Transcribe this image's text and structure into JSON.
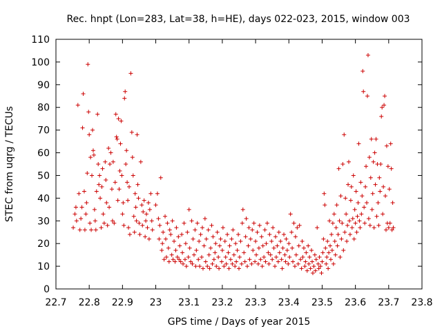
{
  "chart_data": {
    "type": "scatter",
    "title": "Rec. hnpt (Lon=283, Lat=38, h=HE), days 022-023, 2015, window 003",
    "xlabel": "GPS time / Days of year 2015",
    "ylabel": "STEC from uqrg / TECUs",
    "xlim": [
      22.7,
      23.8
    ],
    "ylim": [
      0,
      110
    ],
    "xticks": [
      "22.7",
      "22.8",
      "22.9",
      "23",
      "23.1",
      "23.2",
      "23.3",
      "23.4",
      "23.5",
      "23.6",
      "23.7",
      "23.8"
    ],
    "yticks": [
      "0",
      "10",
      "20",
      "30",
      "40",
      "50",
      "60",
      "70",
      "80",
      "90",
      "100",
      "110"
    ],
    "grid": false,
    "marker": "plus",
    "color": "#cc0000",
    "series_rows": [
      [
        22.752,
        27
      ],
      [
        22.757,
        33
      ],
      [
        22.76,
        36
      ],
      [
        22.762,
        30
      ],
      [
        22.766,
        81
      ],
      [
        22.769,
        42
      ],
      [
        22.772,
        26
      ],
      [
        22.775,
        31
      ],
      [
        22.778,
        36
      ],
      [
        22.78,
        71
      ],
      [
        22.782,
        86
      ],
      [
        22.785,
        43
      ],
      [
        22.787,
        26
      ],
      [
        22.79,
        33
      ],
      [
        22.792,
        38
      ],
      [
        22.794,
        51
      ],
      [
        22.796,
        99
      ],
      [
        22.798,
        78
      ],
      [
        22.8,
        68
      ],
      [
        22.802,
        29
      ],
      [
        22.804,
        58
      ],
      [
        22.806,
        26
      ],
      [
        22.808,
        50
      ],
      [
        22.81,
        70
      ],
      [
        22.812,
        61
      ],
      [
        22.814,
        59
      ],
      [
        22.816,
        35
      ],
      [
        22.818,
        30
      ],
      [
        22.82,
        26
      ],
      [
        22.822,
        43
      ],
      [
        22.825,
        77
      ],
      [
        22.827,
        55
      ],
      [
        22.829,
        46
      ],
      [
        22.831,
        50
      ],
      [
        22.833,
        40
      ],
      [
        22.836,
        27
      ],
      [
        22.838,
        45
      ],
      [
        22.84,
        53
      ],
      [
        22.842,
        33
      ],
      [
        22.845,
        29
      ],
      [
        22.848,
        56
      ],
      [
        22.85,
        48
      ],
      [
        22.852,
        38
      ],
      [
        22.855,
        28
      ],
      [
        22.858,
        62
      ],
      [
        22.86,
        36
      ],
      [
        22.862,
        55
      ],
      [
        22.865,
        60
      ],
      [
        22.868,
        44
      ],
      [
        22.87,
        30
      ],
      [
        22.872,
        56
      ],
      [
        22.875,
        29
      ],
      [
        22.878,
        47
      ],
      [
        22.88,
        77
      ],
      [
        22.882,
        67
      ],
      [
        22.884,
        66
      ],
      [
        22.886,
        39
      ],
      [
        22.888,
        75
      ],
      [
        22.89,
        44
      ],
      [
        22.892,
        52
      ],
      [
        22.894,
        64
      ],
      [
        22.896,
        74
      ],
      [
        22.898,
        50
      ],
      [
        22.9,
        33
      ],
      [
        22.902,
        38
      ],
      [
        22.904,
        28
      ],
      [
        22.906,
        84
      ],
      [
        22.908,
        87
      ],
      [
        22.91,
        55
      ],
      [
        22.912,
        61
      ],
      [
        22.914,
        47
      ],
      [
        22.916,
        39
      ],
      [
        22.918,
        27
      ],
      [
        22.92,
        45
      ],
      [
        22.922,
        24
      ],
      [
        22.925,
        95
      ],
      [
        22.928,
        69
      ],
      [
        22.93,
        58
      ],
      [
        22.932,
        50
      ],
      [
        22.934,
        32
      ],
      [
        22.936,
        25
      ],
      [
        22.938,
        42
      ],
      [
        22.94,
        36
      ],
      [
        22.942,
        30
      ],
      [
        22.944,
        68
      ],
      [
        22.946,
        46
      ],
      [
        22.948,
        40
      ],
      [
        22.95,
        29
      ],
      [
        22.952,
        24
      ],
      [
        22.955,
        56
      ],
      [
        22.958,
        37
      ],
      [
        22.96,
        28
      ],
      [
        22.962,
        34
      ],
      [
        22.965,
        39
      ],
      [
        22.968,
        23
      ],
      [
        22.97,
        30
      ],
      [
        22.972,
        33
      ],
      [
        22.975,
        27
      ],
      [
        22.978,
        38
      ],
      [
        22.98,
        22
      ],
      [
        22.982,
        35
      ],
      [
        22.985,
        42
      ],
      [
        22.988,
        30
      ],
      [
        22.99,
        26
      ],
      [
        23.0,
        37
      ],
      [
        23.005,
        42
      ],
      [
        23.008,
        31
      ],
      [
        23.01,
        22
      ],
      [
        23.012,
        28
      ],
      [
        23.015,
        49
      ],
      [
        23.018,
        17
      ],
      [
        23.02,
        20
      ],
      [
        23.022,
        25
      ],
      [
        23.025,
        13
      ],
      [
        23.028,
        32
      ],
      [
        23.03,
        22
      ],
      [
        23.032,
        14
      ],
      [
        23.035,
        29
      ],
      [
        23.038,
        18
      ],
      [
        23.04,
        12
      ],
      [
        23.042,
        26
      ],
      [
        23.045,
        24
      ],
      [
        23.048,
        15
      ],
      [
        23.05,
        30
      ],
      [
        23.052,
        13
      ],
      [
        23.055,
        21
      ],
      [
        23.058,
        12
      ],
      [
        23.06,
        17
      ],
      [
        23.062,
        27
      ],
      [
        23.065,
        14
      ],
      [
        23.068,
        23
      ],
      [
        23.07,
        13
      ],
      [
        23.072,
        19
      ],
      [
        23.075,
        12
      ],
      [
        23.078,
        24
      ],
      [
        23.08,
        16
      ],
      [
        23.082,
        11
      ],
      [
        23.085,
        29
      ],
      [
        23.088,
        13
      ],
      [
        23.09,
        20
      ],
      [
        23.092,
        10
      ],
      [
        23.095,
        25
      ],
      [
        23.098,
        14
      ],
      [
        23.1,
        35
      ],
      [
        23.102,
        18
      ],
      [
        23.105,
        12
      ],
      [
        23.108,
        30
      ],
      [
        23.11,
        11
      ],
      [
        23.112,
        22
      ],
      [
        23.115,
        15
      ],
      [
        23.118,
        26
      ],
      [
        23.12,
        10
      ],
      [
        23.122,
        17
      ],
      [
        23.125,
        29
      ],
      [
        23.128,
        13
      ],
      [
        23.13,
        21
      ],
      [
        23.132,
        10
      ],
      [
        23.135,
        24
      ],
      [
        23.138,
        14
      ],
      [
        23.14,
        27
      ],
      [
        23.142,
        9
      ],
      [
        23.145,
        19
      ],
      [
        23.148,
        31
      ],
      [
        23.15,
        12
      ],
      [
        23.152,
        22
      ],
      [
        23.155,
        10
      ],
      [
        23.158,
        26
      ],
      [
        23.16,
        15
      ],
      [
        23.162,
        9
      ],
      [
        23.165,
        18
      ],
      [
        23.168,
        28
      ],
      [
        23.17,
        11
      ],
      [
        23.172,
        23
      ],
      [
        23.175,
        13
      ],
      [
        23.178,
        16
      ],
      [
        23.18,
        20
      ],
      [
        23.182,
        10
      ],
      [
        23.185,
        25
      ],
      [
        23.188,
        14
      ],
      [
        23.19,
        9
      ],
      [
        23.192,
        19
      ],
      [
        23.195,
        22
      ],
      [
        23.198,
        12
      ],
      [
        23.2,
        17
      ],
      [
        23.202,
        27
      ],
      [
        23.205,
        10
      ],
      [
        23.208,
        21
      ],
      [
        23.21,
        14
      ],
      [
        23.212,
        11
      ],
      [
        23.215,
        24
      ],
      [
        23.218,
        16
      ],
      [
        23.22,
        9
      ],
      [
        23.222,
        19
      ],
      [
        23.225,
        13
      ],
      [
        23.228,
        22
      ],
      [
        23.23,
        11
      ],
      [
        23.232,
        26
      ],
      [
        23.235,
        15
      ],
      [
        23.238,
        10
      ],
      [
        23.24,
        20
      ],
      [
        23.242,
        12
      ],
      [
        23.245,
        17
      ],
      [
        23.248,
        24
      ],
      [
        23.25,
        9
      ],
      [
        23.252,
        14
      ],
      [
        23.255,
        21
      ],
      [
        23.258,
        11
      ],
      [
        23.26,
        29
      ],
      [
        23.262,
        35
      ],
      [
        23.265,
        16
      ],
      [
        23.268,
        12
      ],
      [
        23.27,
        23
      ],
      [
        23.272,
        31
      ],
      [
        23.275,
        10
      ],
      [
        23.278,
        19
      ],
      [
        23.28,
        27
      ],
      [
        23.282,
        13
      ],
      [
        23.285,
        22
      ],
      [
        23.288,
        11
      ],
      [
        23.29,
        26
      ],
      [
        23.292,
        17
      ],
      [
        23.295,
        29
      ],
      [
        23.298,
        12
      ],
      [
        23.3,
        21
      ],
      [
        23.302,
        15
      ],
      [
        23.305,
        25
      ],
      [
        23.308,
        11
      ],
      [
        23.31,
        18
      ],
      [
        23.312,
        28
      ],
      [
        23.315,
        13
      ],
      [
        23.318,
        23
      ],
      [
        23.32,
        10
      ],
      [
        23.322,
        19
      ],
      [
        23.325,
        14
      ],
      [
        23.328,
        26
      ],
      [
        23.33,
        12
      ],
      [
        23.332,
        20
      ],
      [
        23.335,
        29
      ],
      [
        23.338,
        16
      ],
      [
        23.34,
        11
      ],
      [
        23.342,
        24
      ],
      [
        23.345,
        15
      ],
      [
        23.348,
        21
      ],
      [
        23.35,
        13
      ],
      [
        23.352,
        27
      ],
      [
        23.355,
        18
      ],
      [
        23.358,
        10
      ],
      [
        23.36,
        23
      ],
      [
        23.362,
        14
      ],
      [
        23.365,
        19
      ],
      [
        23.368,
        12
      ],
      [
        23.37,
        25
      ],
      [
        23.372,
        16
      ],
      [
        23.375,
        21
      ],
      [
        23.378,
        13
      ],
      [
        23.38,
        9
      ],
      [
        23.382,
        18
      ],
      [
        23.385,
        24
      ],
      [
        23.388,
        15
      ],
      [
        23.39,
        12
      ],
      [
        23.392,
        22
      ],
      [
        23.395,
        17
      ],
      [
        23.398,
        11
      ],
      [
        23.4,
        20
      ],
      [
        23.402,
        14
      ],
      [
        23.405,
        33
      ],
      [
        23.408,
        25
      ],
      [
        23.41,
        18
      ],
      [
        23.412,
        12
      ],
      [
        23.415,
        29
      ],
      [
        23.418,
        10
      ],
      [
        23.42,
        23
      ],
      [
        23.422,
        15
      ],
      [
        23.425,
        27
      ],
      [
        23.428,
        11
      ],
      [
        23.43,
        19
      ],
      [
        23.432,
        28
      ],
      [
        23.435,
        13
      ],
      [
        23.438,
        9
      ],
      [
        23.44,
        21
      ],
      [
        23.442,
        14
      ],
      [
        23.445,
        18
      ],
      [
        23.448,
        10
      ],
      [
        23.45,
        12
      ],
      [
        23.452,
        16
      ],
      [
        23.455,
        8
      ],
      [
        23.458,
        19
      ],
      [
        23.46,
        11
      ],
      [
        23.462,
        14
      ],
      [
        23.465,
        9
      ],
      [
        23.468,
        17
      ],
      [
        23.47,
        12
      ],
      [
        23.472,
        7
      ],
      [
        23.475,
        10
      ],
      [
        23.478,
        15
      ],
      [
        23.48,
        8
      ],
      [
        23.482,
        13
      ],
      [
        23.485,
        27
      ],
      [
        23.488,
        11
      ],
      [
        23.49,
        9
      ],
      [
        23.492,
        14
      ],
      [
        23.495,
        10
      ],
      [
        23.498,
        7
      ],
      [
        23.5,
        12
      ],
      [
        23.502,
        16
      ],
      [
        23.504,
        22
      ],
      [
        23.506,
        42
      ],
      [
        23.508,
        37
      ],
      [
        23.51,
        18
      ],
      [
        23.512,
        11
      ],
      [
        23.514,
        14
      ],
      [
        23.516,
        21
      ],
      [
        23.518,
        9
      ],
      [
        23.52,
        16
      ],
      [
        23.522,
        30
      ],
      [
        23.524,
        19
      ],
      [
        23.526,
        13
      ],
      [
        23.528,
        24
      ],
      [
        23.53,
        17
      ],
      [
        23.532,
        29
      ],
      [
        23.534,
        11
      ],
      [
        23.536,
        33
      ],
      [
        23.538,
        21
      ],
      [
        23.54,
        15
      ],
      [
        23.542,
        27
      ],
      [
        23.544,
        37
      ],
      [
        23.546,
        19
      ],
      [
        23.548,
        24
      ],
      [
        23.55,
        53
      ],
      [
        23.552,
        30
      ],
      [
        23.554,
        14
      ],
      [
        23.556,
        41
      ],
      [
        23.558,
        22
      ],
      [
        23.56,
        29
      ],
      [
        23.562,
        55
      ],
      [
        23.564,
        17
      ],
      [
        23.566,
        68
      ],
      [
        23.568,
        25
      ],
      [
        23.57,
        40
      ],
      [
        23.572,
        33
      ],
      [
        23.574,
        21
      ],
      [
        23.576,
        28
      ],
      [
        23.578,
        46
      ],
      [
        23.58,
        56
      ],
      [
        23.582,
        30
      ],
      [
        23.584,
        24
      ],
      [
        23.586,
        39
      ],
      [
        23.588,
        45
      ],
      [
        23.59,
        27
      ],
      [
        23.592,
        31
      ],
      [
        23.594,
        50
      ],
      [
        23.596,
        22
      ],
      [
        23.598,
        35
      ],
      [
        23.6,
        29
      ],
      [
        23.602,
        43
      ],
      [
        23.604,
        25
      ],
      [
        23.606,
        32
      ],
      [
        23.608,
        38
      ],
      [
        23.61,
        64
      ],
      [
        23.612,
        30
      ],
      [
        23.614,
        27
      ],
      [
        23.616,
        47
      ],
      [
        23.618,
        33
      ],
      [
        23.62,
        41
      ],
      [
        23.622,
        96
      ],
      [
        23.624,
        87
      ],
      [
        23.626,
        36
      ],
      [
        23.628,
        29
      ],
      [
        23.63,
        45
      ],
      [
        23.632,
        54
      ],
      [
        23.634,
        38
      ],
      [
        23.636,
        85
      ],
      [
        23.638,
        103
      ],
      [
        23.64,
        31
      ],
      [
        23.642,
        58
      ],
      [
        23.644,
        28
      ],
      [
        23.646,
        49
      ],
      [
        23.648,
        66
      ],
      [
        23.65,
        35
      ],
      [
        23.652,
        42
      ],
      [
        23.654,
        56
      ],
      [
        23.656,
        27
      ],
      [
        23.658,
        60
      ],
      [
        23.66,
        46
      ],
      [
        23.662,
        66
      ],
      [
        23.664,
        32
      ],
      [
        23.666,
        55
      ],
      [
        23.668,
        38
      ],
      [
        23.67,
        28
      ],
      [
        23.672,
        49
      ],
      [
        23.674,
        43
      ],
      [
        23.676,
        55
      ],
      [
        23.678,
        76
      ],
      [
        23.68,
        80
      ],
      [
        23.682,
        33
      ],
      [
        23.684,
        45
      ],
      [
        23.686,
        81
      ],
      [
        23.688,
        85
      ],
      [
        23.69,
        41
      ],
      [
        23.692,
        26
      ],
      [
        23.694,
        63
      ],
      [
        23.696,
        29
      ],
      [
        23.698,
        54
      ],
      [
        23.7,
        27
      ],
      [
        23.702,
        44
      ],
      [
        23.704,
        29
      ],
      [
        23.706,
        64
      ],
      [
        23.708,
        53
      ],
      [
        23.71,
        26
      ],
      [
        23.712,
        38
      ],
      [
        23.714,
        27
      ]
    ]
  }
}
